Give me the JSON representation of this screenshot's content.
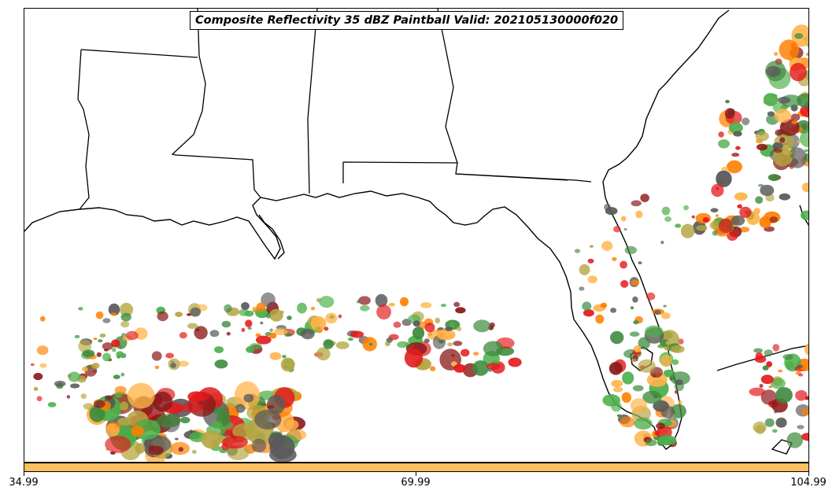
{
  "title": "Composite Reflectivity 35 dBZ Paintball Valid: 202105130000f020",
  "colorbar": {
    "color": "#ffc060",
    "ticks": [
      "34.99",
      "69.99",
      "104.99"
    ]
  },
  "paintball_colors": [
    "#e41a1c",
    "#ff7f00",
    "#4daf4a",
    "#8b1a1a",
    "#5a5a5a",
    "#b5a642",
    "#ffb347",
    "#3c8a3c"
  ]
}
